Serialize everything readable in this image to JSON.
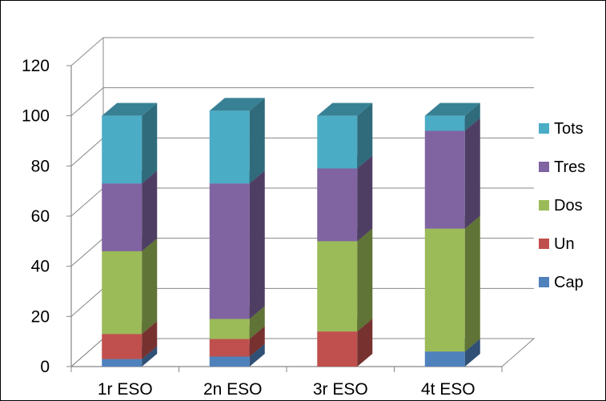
{
  "chart_data": {
    "type": "bar",
    "stacked": true,
    "three_d": true,
    "title": "",
    "xlabel": "",
    "ylabel": "",
    "ylim": [
      0,
      120
    ],
    "y_ticks": [
      0,
      20,
      40,
      60,
      80,
      100,
      120
    ],
    "grid": true,
    "legend_position": "right",
    "categories": [
      "1r ESO",
      "2n ESO",
      "3r ESO",
      "4t ESO"
    ],
    "series": [
      {
        "name": "Cap",
        "color": "#4F81BD",
        "values": [
          3,
          4,
          0,
          6
        ]
      },
      {
        "name": "Un",
        "color": "#C0504D",
        "values": [
          10,
          7,
          14,
          0
        ]
      },
      {
        "name": "Dos",
        "color": "#9BBB59",
        "values": [
          33,
          8,
          36,
          49
        ]
      },
      {
        "name": "Tres",
        "color": "#8064A2",
        "values": [
          27,
          54,
          29,
          39
        ]
      },
      {
        "name": "Tots",
        "color": "#4BACC6",
        "values": [
          27,
          29,
          21,
          6
        ]
      }
    ]
  }
}
